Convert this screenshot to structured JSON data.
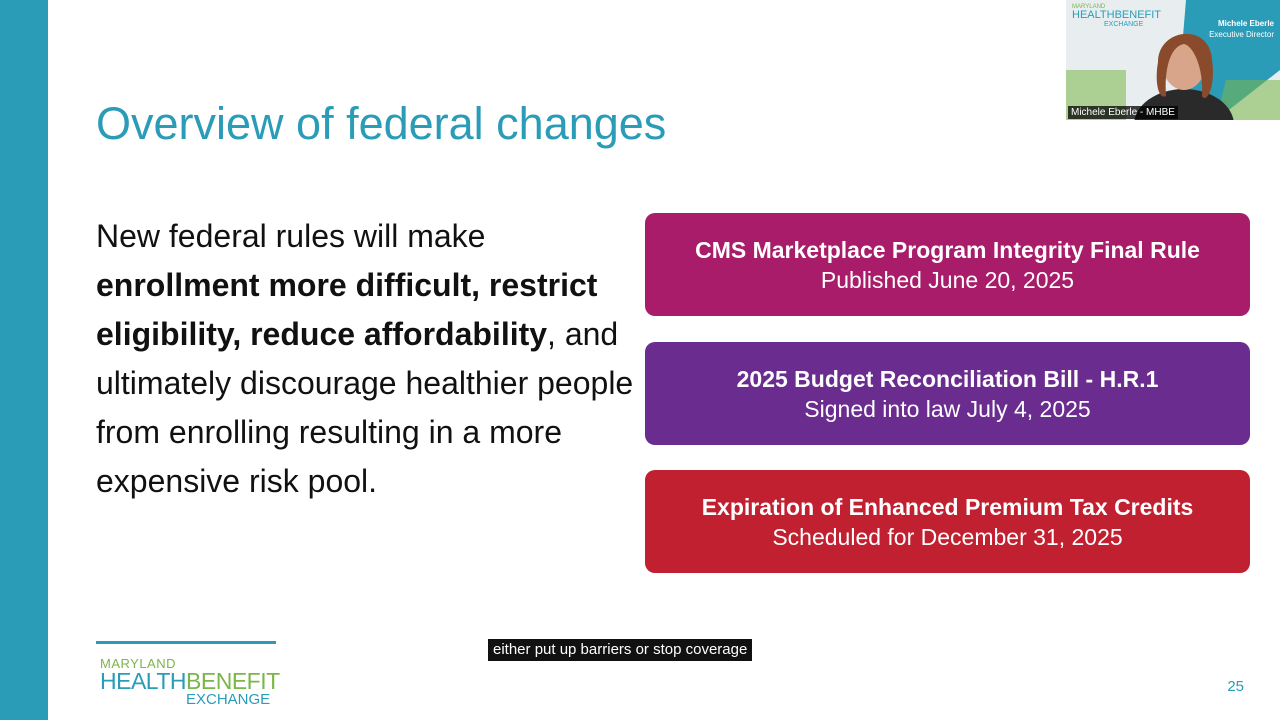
{
  "slide": {
    "title": "Overview of federal changes",
    "body": {
      "intro": "New federal rules will make",
      "bold_part": "enrollment more difficult, restrict eligibility, reduce affordability",
      "rest": ", and ultimately discourage healthier people from enrolling resulting in a more expensive risk pool."
    },
    "cards": [
      {
        "title": "CMS Marketplace Program Integrity Final Rule",
        "subtitle": "Published June 20, 2025",
        "color": "#a81c69"
      },
      {
        "title": "2025 Budget Reconciliation Bill - H.R.1",
        "subtitle": "Signed into law July 4, 2025",
        "color": "#6b2c8f"
      },
      {
        "title": "Expiration of Enhanced Premium Tax Credits",
        "subtitle": "Scheduled for December 31, 2025",
        "color": "#c0202f"
      }
    ],
    "logo": {
      "line1": "MARYLAND",
      "line2a": "HEALTH",
      "line2b": "BENEFIT",
      "line3": "EXCHANGE"
    },
    "page_number": "25",
    "accent_color": "#2b9cb8"
  },
  "caption": "either put up barriers or stop coverage",
  "video_tile": {
    "speaker_label": "Michele Eberle - MHBE",
    "nameplate_name": "Michele Eberle",
    "nameplate_title": "Executive Director",
    "logo_line1": "MARYLAND",
    "logo_line2": "HEALTHBENEFIT",
    "logo_line3": "EXCHANGE"
  }
}
